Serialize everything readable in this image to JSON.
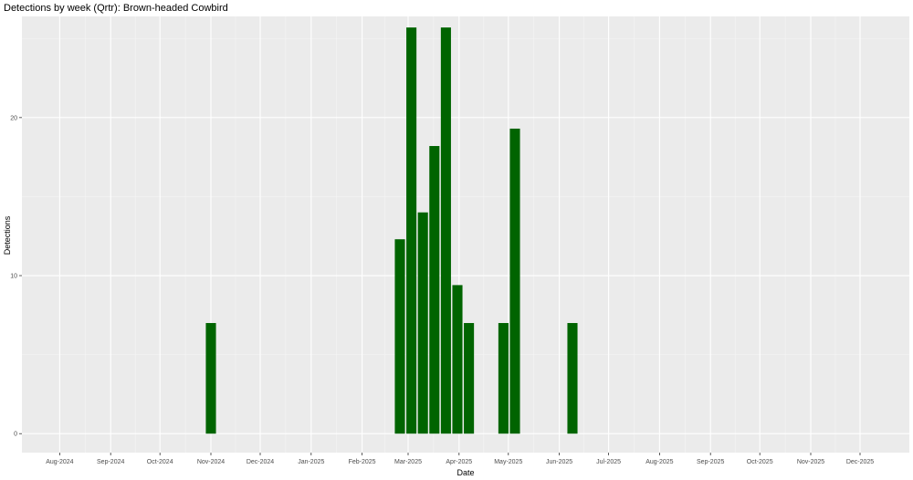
{
  "chart_data": {
    "type": "bar",
    "title": "Detections by week (Qrtr): Brown-headed Cowbird",
    "xlabel": "Date",
    "ylabel": "Detections",
    "x_range": [
      "2024-07-09",
      "2025-12-31"
    ],
    "ylim": [
      -1.2,
      26.4
    ],
    "y_ticks": [
      0,
      10,
      20
    ],
    "x_ticks": [
      {
        "date": "2024-08-01",
        "label": "Aug-2024"
      },
      {
        "date": "2024-09-01",
        "label": "Sep-2024"
      },
      {
        "date": "2024-10-01",
        "label": "Oct-2024"
      },
      {
        "date": "2024-11-01",
        "label": "Nov-2024"
      },
      {
        "date": "2024-12-01",
        "label": "Dec-2024"
      },
      {
        "date": "2025-01-01",
        "label": "Jan-2025"
      },
      {
        "date": "2025-02-01",
        "label": "Feb-2025"
      },
      {
        "date": "2025-03-01",
        "label": "Mar-2025"
      },
      {
        "date": "2025-04-01",
        "label": "Apr-2025"
      },
      {
        "date": "2025-05-01",
        "label": "May-2025"
      },
      {
        "date": "2025-06-01",
        "label": "Jun-2025"
      },
      {
        "date": "2025-07-01",
        "label": "Jul-2025"
      },
      {
        "date": "2025-08-01",
        "label": "Aug-2025"
      },
      {
        "date": "2025-09-01",
        "label": "Sep-2025"
      },
      {
        "date": "2025-10-01",
        "label": "Oct-2025"
      },
      {
        "date": "2025-11-01",
        "label": "Nov-2025"
      },
      {
        "date": "2025-12-01",
        "label": "Dec-2025"
      }
    ],
    "bars": [
      {
        "week": "2024-11-01",
        "value": 7
      },
      {
        "week": "2025-02-24",
        "value": 12.3
      },
      {
        "week": "2025-03-03",
        "value": 25.7
      },
      {
        "week": "2025-03-10",
        "value": 14
      },
      {
        "week": "2025-03-17",
        "value": 18.2
      },
      {
        "week": "2025-03-24",
        "value": 25.7
      },
      {
        "week": "2025-03-31",
        "value": 9.4
      },
      {
        "week": "2025-04-07",
        "value": 7
      },
      {
        "week": "2025-04-28",
        "value": 7
      },
      {
        "week": "2025-05-05",
        "value": 19.3
      },
      {
        "week": "2025-06-09",
        "value": 7
      }
    ],
    "bar_color": "#006400",
    "panel_color": "#ebebeb",
    "grid": true,
    "legend": "none"
  }
}
